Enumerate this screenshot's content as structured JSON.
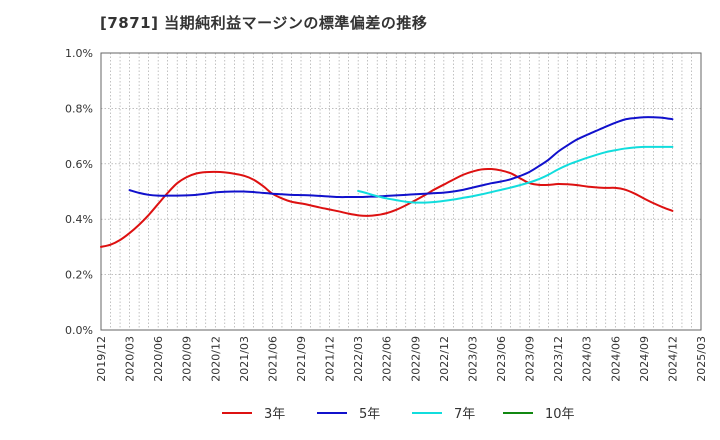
{
  "title": "[7871]  当期純利益マージンの標準偏差の推移",
  "chart_data": {
    "type": "line",
    "title": "[7871]  当期純利益マージンの標準偏差の推移",
    "xlabel": "",
    "ylabel": "",
    "x_ticks": [
      "2019/12",
      "2020/03",
      "2020/06",
      "2020/09",
      "2020/12",
      "2021/03",
      "2021/06",
      "2021/09",
      "2021/12",
      "2022/03",
      "2022/06",
      "2022/09",
      "2022/12",
      "2023/03",
      "2023/06",
      "2023/09",
      "2023/12",
      "2024/03",
      "2024/06",
      "2024/09",
      "2024/12",
      "2025/03"
    ],
    "y_ticks": [
      "0.0%",
      "0.2%",
      "0.4%",
      "0.6%",
      "0.8%",
      "1.0%"
    ],
    "ylim": [
      0,
      1.0
    ],
    "xlim": [
      "2019/12",
      "2025/03"
    ],
    "grid": true,
    "legend_position": "bottom",
    "series": [
      {
        "name": "3年",
        "color": "#dd1111",
        "points": [
          [
            "2019/12",
            0.3
          ],
          [
            "2020/01",
            0.308
          ],
          [
            "2020/02",
            0.325
          ],
          [
            "2020/03",
            0.35
          ],
          [
            "2020/04",
            0.38
          ],
          [
            "2020/05",
            0.415
          ],
          [
            "2020/06",
            0.455
          ],
          [
            "2020/07",
            0.495
          ],
          [
            "2020/08",
            0.53
          ],
          [
            "2020/09",
            0.552
          ],
          [
            "2020/10",
            0.565
          ],
          [
            "2020/11",
            0.57
          ],
          [
            "2020/12",
            0.571
          ],
          [
            "2021/01",
            0.569
          ],
          [
            "2021/02",
            0.564
          ],
          [
            "2021/03",
            0.557
          ],
          [
            "2021/04",
            0.543
          ],
          [
            "2021/05",
            0.52
          ],
          [
            "2021/06",
            0.492
          ],
          [
            "2021/07",
            0.475
          ],
          [
            "2021/08",
            0.463
          ],
          [
            "2021/09",
            0.457
          ],
          [
            "2021/10",
            0.45
          ],
          [
            "2021/11",
            0.442
          ],
          [
            "2021/12",
            0.435
          ],
          [
            "2022/01",
            0.428
          ],
          [
            "2022/02",
            0.42
          ],
          [
            "2022/03",
            0.414
          ],
          [
            "2022/04",
            0.412
          ],
          [
            "2022/05",
            0.415
          ],
          [
            "2022/06",
            0.422
          ],
          [
            "2022/07",
            0.434
          ],
          [
            "2022/08",
            0.45
          ],
          [
            "2022/09",
            0.468
          ],
          [
            "2022/10",
            0.487
          ],
          [
            "2022/11",
            0.507
          ],
          [
            "2022/12",
            0.525
          ],
          [
            "2023/01",
            0.543
          ],
          [
            "2023/02",
            0.56
          ],
          [
            "2023/03",
            0.572
          ],
          [
            "2023/04",
            0.58
          ],
          [
            "2023/05",
            0.581
          ],
          [
            "2023/06",
            0.576
          ],
          [
            "2023/07",
            0.566
          ],
          [
            "2023/08",
            0.548
          ],
          [
            "2023/09",
            0.53
          ],
          [
            "2023/10",
            0.524
          ],
          [
            "2023/11",
            0.524
          ],
          [
            "2023/12",
            0.527
          ],
          [
            "2024/01",
            0.526
          ],
          [
            "2024/02",
            0.523
          ],
          [
            "2024/03",
            0.518
          ],
          [
            "2024/04",
            0.515
          ],
          [
            "2024/05",
            0.513
          ],
          [
            "2024/06",
            0.513
          ],
          [
            "2024/07",
            0.507
          ],
          [
            "2024/08",
            0.493
          ],
          [
            "2024/09",
            0.475
          ],
          [
            "2024/10",
            0.458
          ],
          [
            "2024/11",
            0.443
          ],
          [
            "2024/12",
            0.43
          ]
        ]
      },
      {
        "name": "5年",
        "color": "#1111cc",
        "points": [
          [
            "2020/03",
            0.505
          ],
          [
            "2020/04",
            0.495
          ],
          [
            "2020/05",
            0.488
          ],
          [
            "2020/06",
            0.485
          ],
          [
            "2020/07",
            0.485
          ],
          [
            "2020/08",
            0.485
          ],
          [
            "2020/09",
            0.486
          ],
          [
            "2020/10",
            0.488
          ],
          [
            "2020/11",
            0.492
          ],
          [
            "2020/12",
            0.497
          ],
          [
            "2021/01",
            0.499
          ],
          [
            "2021/02",
            0.5
          ],
          [
            "2021/03",
            0.5
          ],
          [
            "2021/04",
            0.498
          ],
          [
            "2021/05",
            0.495
          ],
          [
            "2021/06",
            0.492
          ],
          [
            "2021/07",
            0.49
          ],
          [
            "2021/08",
            0.488
          ],
          [
            "2021/09",
            0.487
          ],
          [
            "2021/10",
            0.486
          ],
          [
            "2021/11",
            0.484
          ],
          [
            "2021/12",
            0.482
          ],
          [
            "2022/01",
            0.48
          ],
          [
            "2022/02",
            0.48
          ],
          [
            "2022/03",
            0.48
          ],
          [
            "2022/04",
            0.481
          ],
          [
            "2022/05",
            0.482
          ],
          [
            "2022/06",
            0.484
          ],
          [
            "2022/07",
            0.486
          ],
          [
            "2022/08",
            0.488
          ],
          [
            "2022/09",
            0.49
          ],
          [
            "2022/10",
            0.492
          ],
          [
            "2022/11",
            0.494
          ],
          [
            "2022/12",
            0.496
          ],
          [
            "2023/01",
            0.5
          ],
          [
            "2023/02",
            0.506
          ],
          [
            "2023/03",
            0.514
          ],
          [
            "2023/04",
            0.522
          ],
          [
            "2023/05",
            0.53
          ],
          [
            "2023/06",
            0.536
          ],
          [
            "2023/07",
            0.544
          ],
          [
            "2023/08",
            0.556
          ],
          [
            "2023/09",
            0.571
          ],
          [
            "2023/10",
            0.592
          ],
          [
            "2023/11",
            0.615
          ],
          [
            "2023/12",
            0.644
          ],
          [
            "2024/01",
            0.667
          ],
          [
            "2024/02",
            0.688
          ],
          [
            "2024/03",
            0.704
          ],
          [
            "2024/04",
            0.719
          ],
          [
            "2024/05",
            0.734
          ],
          [
            "2024/06",
            0.748
          ],
          [
            "2024/07",
            0.76
          ],
          [
            "2024/08",
            0.765
          ],
          [
            "2024/09",
            0.768
          ],
          [
            "2024/10",
            0.768
          ],
          [
            "2024/11",
            0.766
          ],
          [
            "2024/12",
            0.761
          ]
        ]
      },
      {
        "name": "7年",
        "color": "#11dddd",
        "points": [
          [
            "2022/03",
            0.502
          ],
          [
            "2022/04",
            0.493
          ],
          [
            "2022/05",
            0.483
          ],
          [
            "2022/06",
            0.475
          ],
          [
            "2022/07",
            0.469
          ],
          [
            "2022/08",
            0.463
          ],
          [
            "2022/09",
            0.46
          ],
          [
            "2022/10",
            0.46
          ],
          [
            "2022/11",
            0.462
          ],
          [
            "2022/12",
            0.466
          ],
          [
            "2023/01",
            0.471
          ],
          [
            "2023/02",
            0.477
          ],
          [
            "2023/03",
            0.483
          ],
          [
            "2023/04",
            0.49
          ],
          [
            "2023/05",
            0.498
          ],
          [
            "2023/06",
            0.506
          ],
          [
            "2023/07",
            0.514
          ],
          [
            "2023/08",
            0.523
          ],
          [
            "2023/09",
            0.533
          ],
          [
            "2023/10",
            0.545
          ],
          [
            "2023/11",
            0.561
          ],
          [
            "2023/12",
            0.58
          ],
          [
            "2024/01",
            0.596
          ],
          [
            "2024/02",
            0.609
          ],
          [
            "2024/03",
            0.621
          ],
          [
            "2024/04",
            0.632
          ],
          [
            "2024/05",
            0.642
          ],
          [
            "2024/06",
            0.649
          ],
          [
            "2024/07",
            0.655
          ],
          [
            "2024/08",
            0.659
          ],
          [
            "2024/09",
            0.661
          ],
          [
            "2024/10",
            0.661
          ],
          [
            "2024/11",
            0.661
          ],
          [
            "2024/12",
            0.661
          ]
        ]
      },
      {
        "name": "10年",
        "color": "#118811",
        "points": []
      }
    ]
  }
}
